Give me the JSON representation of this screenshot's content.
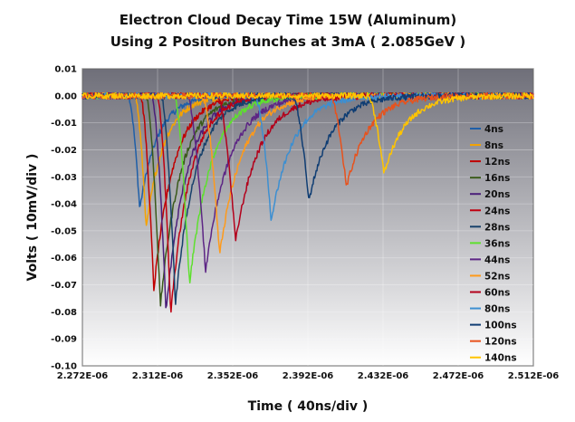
{
  "chart_data": {
    "type": "line",
    "title": "Electron Cloud Decay Time 15W (Aluminum)",
    "subtitle": "Using 2 Positron Bunches at 3mA ( 2.085GeV )",
    "xlabel": "Time ( 40ns/div )",
    "ylabel": "Volts ( 10mV/div )",
    "xlim": [
      2.272e-06,
      2.512e-06
    ],
    "ylim": [
      -0.1,
      0.01
    ],
    "x_ticks": [
      "2.272E-06",
      "2.312E-06",
      "2.352E-06",
      "2.392E-06",
      "2.432E-06",
      "2.472E-06",
      "2.512E-06"
    ],
    "y_ticks": [
      "0.01",
      "0.00",
      "-0.01",
      "-0.02",
      "-0.03",
      "-0.04",
      "-0.05",
      "-0.06",
      "-0.07",
      "-0.08",
      "-0.09",
      "-0.10"
    ],
    "grid": true,
    "legend_position": "right",
    "series": [
      {
        "name": "4ns",
        "color": "#1f5fa8",
        "peak_time": 2.3025e-06,
        "peak_value": -0.042,
        "onset": 2.2965e-06
      },
      {
        "name": "8ns",
        "color": "#f5a300",
        "peak_time": 2.306e-06,
        "peak_value": -0.049,
        "onset": 2.3e-06
      },
      {
        "name": "12ns",
        "color": "#c00000",
        "peak_time": 2.31e-06,
        "peak_value": -0.072,
        "onset": 2.303e-06
      },
      {
        "name": "16ns",
        "color": "#3a5a1a",
        "peak_time": 2.3135e-06,
        "peak_value": -0.078,
        "onset": 2.306e-06
      },
      {
        "name": "20ns",
        "color": "#4b1f7a",
        "peak_time": 2.3165e-06,
        "peak_value": -0.08,
        "onset": 2.309e-06
      },
      {
        "name": "24ns",
        "color": "#c00010",
        "peak_time": 2.319e-06,
        "peak_value": -0.081,
        "onset": 2.312e-06
      },
      {
        "name": "28ns",
        "color": "#17416b",
        "peak_time": 2.3215e-06,
        "peak_value": -0.077,
        "onset": 2.314e-06
      },
      {
        "name": "36ns",
        "color": "#5ee02e",
        "peak_time": 2.329e-06,
        "peak_value": -0.07,
        "onset": 2.321e-06
      },
      {
        "name": "44ns",
        "color": "#5d2585",
        "peak_time": 2.3375e-06,
        "peak_value": -0.065,
        "onset": 2.328e-06
      },
      {
        "name": "52ns",
        "color": "#ff9a1a",
        "peak_time": 2.345e-06,
        "peak_value": -0.059,
        "onset": 2.336e-06
      },
      {
        "name": "60ns",
        "color": "#b3001b",
        "peak_time": 2.3535e-06,
        "peak_value": -0.054,
        "onset": 2.344e-06
      },
      {
        "name": "80ns",
        "color": "#3d8fd1",
        "peak_time": 2.3725e-06,
        "peak_value": -0.046,
        "onset": 2.364e-06
      },
      {
        "name": "100ns",
        "color": "#0f3d73",
        "peak_time": 2.3925e-06,
        "peak_value": -0.039,
        "onset": 2.384e-06
      },
      {
        "name": "120ns",
        "color": "#e8521c",
        "peak_time": 2.4125e-06,
        "peak_value": -0.034,
        "onset": 2.404e-06
      },
      {
        "name": "140ns",
        "color": "#ffc400",
        "peak_time": 2.4325e-06,
        "peak_value": -0.029,
        "onset": 2.424e-06
      }
    ]
  }
}
